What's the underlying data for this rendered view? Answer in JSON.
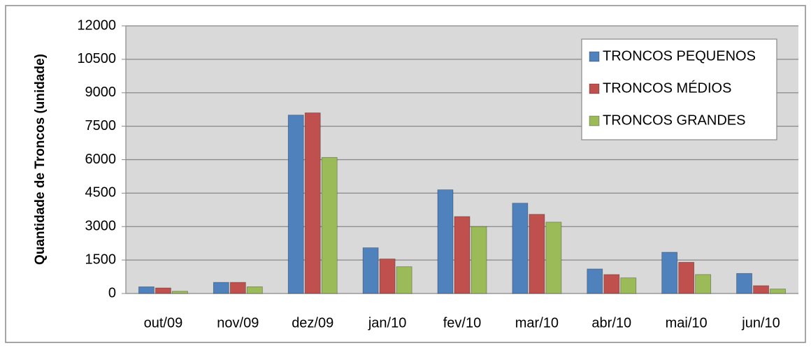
{
  "chart_data": {
    "type": "bar",
    "y_label": "Quantidade de Troncos (unidade)",
    "categories": [
      "out/09",
      "nov/09",
      "dez/09",
      "jan/10",
      "fev/10",
      "mar/10",
      "abr/10",
      "mai/10",
      "jun/10"
    ],
    "series": [
      {
        "name": "TRONCOS PEQUENOS",
        "color": "#4f81bd",
        "values": [
          300,
          500,
          8000,
          2050,
          4650,
          4050,
          1100,
          1850,
          900
        ]
      },
      {
        "name": "TRONCOS MÉDIOS",
        "color": "#c0504d",
        "values": [
          250,
          500,
          8100,
          1550,
          3450,
          3550,
          850,
          1400,
          350
        ]
      },
      {
        "name": "TRONCOS GRANDES",
        "color": "#9bbb59",
        "values": [
          100,
          300,
          6100,
          1200,
          3000,
          3200,
          700,
          850,
          200
        ]
      }
    ],
    "ylim": [
      0,
      12000
    ],
    "yticks": [
      0,
      1500,
      3000,
      4500,
      6000,
      7500,
      9000,
      10500,
      12000
    ],
    "grid": true,
    "legend": "top-right"
  }
}
